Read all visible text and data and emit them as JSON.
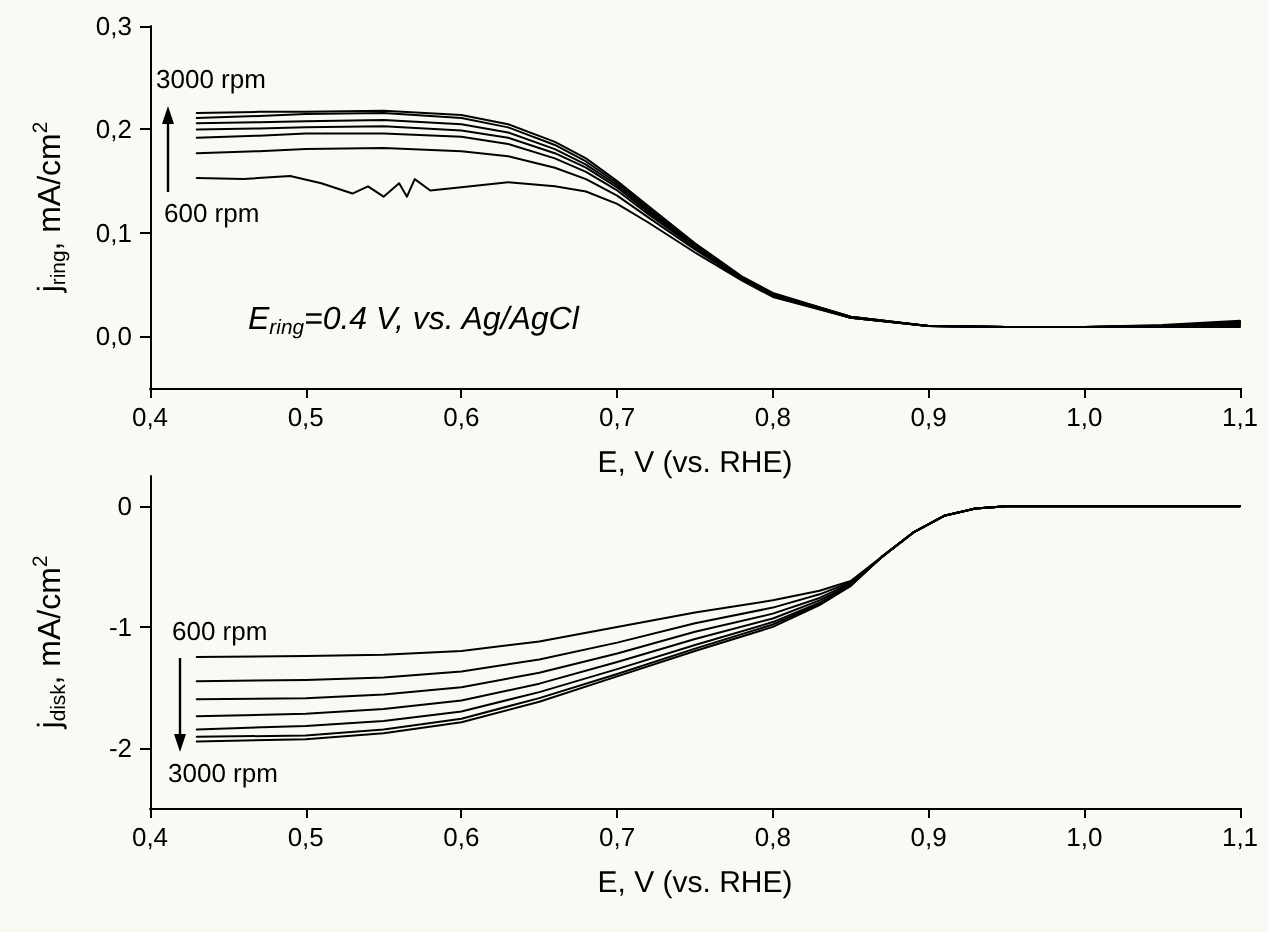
{
  "chart_data": [
    {
      "type": "line",
      "xlabel": "E, V (vs. RHE)",
      "ylabel": "j$_{ring}$, mA/cm$^{2}$",
      "marker": "none",
      "grid": false,
      "xlim": [
        0.4,
        1.1
      ],
      "xticks": [
        {
          "value": 0.4,
          "label": "0,4"
        },
        {
          "value": 0.5,
          "label": "0,5"
        },
        {
          "value": 0.6,
          "label": "0,6"
        },
        {
          "value": 0.7,
          "label": "0,7"
        },
        {
          "value": 0.8,
          "label": "0,8"
        },
        {
          "value": 0.9,
          "label": "0,9"
        },
        {
          "value": 1.0,
          "label": "1,0"
        },
        {
          "value": 1.1,
          "label": "1,1"
        }
      ],
      "ylim": [
        -0.05,
        0.3
      ],
      "yticks": [
        {
          "value": 0,
          "label": "0,0"
        },
        {
          "value": 0.1,
          "label": "0,1"
        },
        {
          "value": 0.2,
          "label": "0,2"
        },
        {
          "value": 0.3,
          "label": "0,3"
        }
      ],
      "x": [
        0.43,
        0.47,
        0.5,
        0.55,
        0.6,
        0.63,
        0.66,
        0.68,
        0.7,
        0.72,
        0.75,
        0.78,
        0.8,
        0.85,
        0.9,
        0.95,
        1.0,
        1.05,
        1.1
      ],
      "series": [
        {
          "color": "#000000",
          "values": [
            0.216,
            0.217,
            0.217,
            0.218,
            0.214,
            0.205,
            0.188,
            0.172,
            0.15,
            0.126,
            0.09,
            0.058,
            0.042,
            0.019,
            0.01,
            0.009,
            0.009,
            0.011,
            0.015
          ]
        },
        {
          "color": "#000000",
          "values": [
            0.211,
            0.213,
            0.215,
            0.216,
            0.211,
            0.202,
            0.185,
            0.169,
            0.148,
            0.124,
            0.089,
            0.057,
            0.041,
            0.019,
            0.01,
            0.009,
            0.009,
            0.01,
            0.014
          ]
        },
        {
          "color": "#000000",
          "values": [
            0.206,
            0.207,
            0.208,
            0.209,
            0.205,
            0.197,
            0.181,
            0.166,
            0.146,
            0.122,
            0.088,
            0.057,
            0.041,
            0.019,
            0.01,
            0.009,
            0.009,
            0.01,
            0.013
          ]
        },
        {
          "color": "#000000",
          "values": [
            0.2,
            0.201,
            0.202,
            0.203,
            0.199,
            0.192,
            0.177,
            0.163,
            0.144,
            0.12,
            0.087,
            0.056,
            0.04,
            0.018,
            0.01,
            0.009,
            0.009,
            0.01,
            0.012
          ]
        },
        {
          "color": "#000000",
          "values": [
            0.192,
            0.194,
            0.196,
            0.196,
            0.193,
            0.186,
            0.172,
            0.159,
            0.141,
            0.118,
            0.086,
            0.056,
            0.04,
            0.018,
            0.01,
            0.009,
            0.009,
            0.01,
            0.011
          ]
        },
        {
          "color": "#000000",
          "values": [
            0.177,
            0.179,
            0.181,
            0.182,
            0.179,
            0.174,
            0.163,
            0.152,
            0.136,
            0.115,
            0.084,
            0.055,
            0.039,
            0.018,
            0.01,
            0.009,
            0.009,
            0.009,
            0.01
          ]
        },
        {
          "color": "#000000",
          "x": [
            0.43,
            0.46,
            0.49,
            0.51,
            0.53,
            0.54,
            0.55,
            0.56,
            0.565,
            0.57,
            0.58,
            0.6,
            0.63,
            0.66,
            0.68,
            0.7,
            0.72,
            0.75,
            0.78,
            0.8,
            0.85,
            0.9,
            0.95,
            1.0,
            1.05,
            1.1
          ],
          "values": [
            0.153,
            0.152,
            0.155,
            0.148,
            0.138,
            0.145,
            0.135,
            0.148,
            0.135,
            0.152,
            0.141,
            0.144,
            0.149,
            0.145,
            0.14,
            0.128,
            0.11,
            0.081,
            0.054,
            0.038,
            0.018,
            0.01,
            0.009,
            0.009,
            0.009,
            0.009
          ]
        }
      ],
      "annotations": [
        "3000 rpm",
        "600 rpm",
        "E$_{ring}$=0.4 V, vs. Ag/AgCl"
      ]
    },
    {
      "type": "line",
      "xlabel": "E, V (vs. RHE)",
      "ylabel": "j$_{disk}$, mA/cm$^{2}$",
      "marker": "none",
      "grid": false,
      "xlim": [
        0.4,
        1.1
      ],
      "xticks": [
        {
          "value": 0.4,
          "label": "0,4"
        },
        {
          "value": 0.5,
          "label": "0,5"
        },
        {
          "value": 0.6,
          "label": "0,6"
        },
        {
          "value": 0.7,
          "label": "0,7"
        },
        {
          "value": 0.8,
          "label": "0,8"
        },
        {
          "value": 0.9,
          "label": "0,9"
        },
        {
          "value": 1.0,
          "label": "1,0"
        },
        {
          "value": 1.1,
          "label": "1,1"
        }
      ],
      "ylim": [
        -2.5,
        0.25
      ],
      "yticks": [
        -2,
        -1,
        0
      ],
      "x": [
        0.43,
        0.5,
        0.55,
        0.6,
        0.65,
        0.7,
        0.75,
        0.8,
        0.83,
        0.85,
        0.87,
        0.89,
        0.91,
        0.93,
        0.95,
        1.0,
        1.1
      ],
      "series": [
        {
          "color": "#000000",
          "values": [
            -1.25,
            -1.24,
            -1.23,
            -1.2,
            -1.12,
            -1.0,
            -0.88,
            -0.78,
            -0.7,
            -0.62,
            -0.42,
            -0.22,
            -0.08,
            -0.02,
            0,
            0,
            0
          ]
        },
        {
          "color": "#000000",
          "values": [
            -1.45,
            -1.44,
            -1.42,
            -1.37,
            -1.27,
            -1.13,
            -0.97,
            -0.84,
            -0.73,
            -0.63,
            -0.42,
            -0.22,
            -0.08,
            -0.02,
            0,
            0,
            0
          ]
        },
        {
          "color": "#000000",
          "values": [
            -1.6,
            -1.59,
            -1.56,
            -1.5,
            -1.38,
            -1.22,
            -1.04,
            -0.89,
            -0.76,
            -0.64,
            -0.42,
            -0.22,
            -0.08,
            -0.02,
            0,
            0,
            0
          ]
        },
        {
          "color": "#000000",
          "values": [
            -1.74,
            -1.72,
            -1.68,
            -1.61,
            -1.47,
            -1.29,
            -1.1,
            -0.93,
            -0.78,
            -0.65,
            -0.42,
            -0.22,
            -0.08,
            -0.02,
            0,
            0,
            0
          ]
        },
        {
          "color": "#000000",
          "values": [
            -1.85,
            -1.82,
            -1.78,
            -1.7,
            -1.54,
            -1.35,
            -1.15,
            -0.96,
            -0.8,
            -0.65,
            -0.42,
            -0.22,
            -0.08,
            -0.02,
            0,
            0,
            0
          ]
        },
        {
          "color": "#000000",
          "values": [
            -1.91,
            -1.9,
            -1.85,
            -1.76,
            -1.59,
            -1.39,
            -1.18,
            -0.98,
            -0.81,
            -0.66,
            -0.42,
            -0.22,
            -0.08,
            -0.02,
            0,
            0,
            0
          ]
        },
        {
          "color": "#000000",
          "values": [
            -1.95,
            -1.93,
            -1.88,
            -1.79,
            -1.62,
            -1.41,
            -1.2,
            -1.0,
            -0.82,
            -0.66,
            -0.42,
            -0.22,
            -0.08,
            -0.02,
            0,
            0,
            0
          ]
        }
      ],
      "annotations": [
        "3000 rpm",
        "600 rpm"
      ]
    }
  ]
}
